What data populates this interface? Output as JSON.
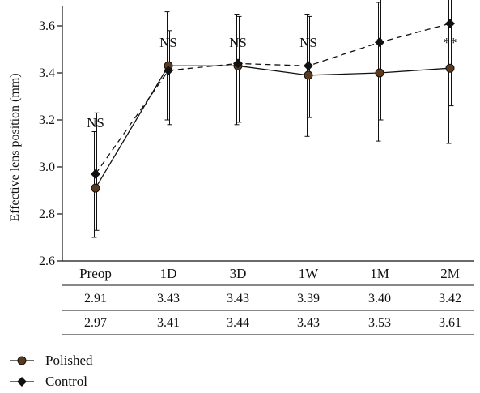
{
  "chart_data": {
    "type": "line",
    "ylabel": "Effective lens position (mm)",
    "ylim": [
      2.6,
      4.3
    ],
    "yticks": [
      2.6,
      2.8,
      3.0,
      3.2,
      3.4,
      3.6,
      3.8,
      4.0,
      4.2
    ],
    "grid": false,
    "legend_position": "bottom-left",
    "categories": [
      "Preop",
      "1D",
      "3D",
      "1W",
      "1M",
      "2M"
    ],
    "significance": [
      "NS",
      "NS",
      "NS",
      "NS",
      "*",
      "**"
    ],
    "series": [
      {
        "name": "Polished",
        "line_style": "solid",
        "marker": "circle",
        "marker_color": "#5b3a1e",
        "values": [
          2.91,
          3.43,
          3.43,
          3.39,
          3.4,
          3.42
        ],
        "table_values": [
          "2.91",
          "3.43",
          "3.43",
          "3.39",
          "3.40",
          "3.42"
        ],
        "error_low": [
          2.7,
          3.2,
          3.18,
          3.13,
          3.11,
          3.1
        ],
        "error_high": [
          3.15,
          3.66,
          3.65,
          3.65,
          3.7,
          3.73
        ]
      },
      {
        "name": "Control",
        "line_style": "dashed",
        "marker": "diamond",
        "marker_color": "#111111",
        "values": [
          2.97,
          3.41,
          3.44,
          3.43,
          3.53,
          3.61
        ],
        "table_values": [
          "2.97",
          "3.41",
          "3.44",
          "3.43",
          "3.53",
          "3.61"
        ],
        "error_low": [
          2.73,
          3.18,
          3.19,
          3.21,
          3.2,
          3.26
        ],
        "error_high": [
          3.23,
          3.58,
          3.64,
          3.64,
          3.85,
          3.95
        ]
      }
    ]
  }
}
